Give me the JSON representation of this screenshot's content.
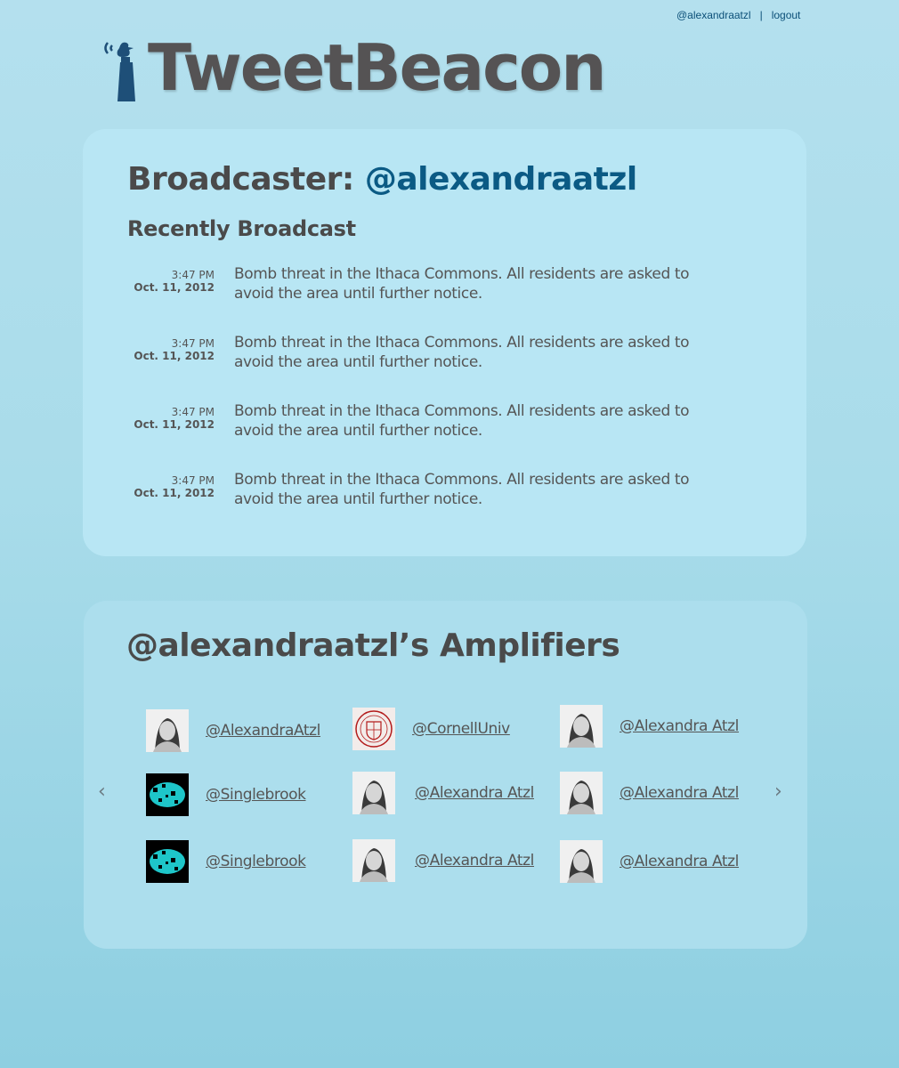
{
  "topnav": {
    "user_link": "@alexandraatzl",
    "separator": "|",
    "logout_link": "logout"
  },
  "logo": {
    "text": "TweetBeacon",
    "icon": "beacon-bird-icon"
  },
  "broadcaster": {
    "label": "Broadcaster: ",
    "handle": "@alexandraatzl"
  },
  "recent": {
    "title": "Recently Broadcast",
    "items": [
      {
        "time": "3:47 PM",
        "date": "Oct. 11, 2012",
        "text": "Bomb threat in the Ithaca Commons.  All residents are asked to avoid the area until further notice."
      },
      {
        "time": "3:47 PM",
        "date": "Oct. 11, 2012",
        "text": "Bomb threat in the Ithaca Commons.  All residents are asked to avoid the area until further notice."
      },
      {
        "time": "3:47 PM",
        "date": "Oct. 11, 2012",
        "text": "Bomb threat in the Ithaca Commons.  All residents are asked to avoid the area until further notice."
      },
      {
        "time": "3:47 PM",
        "date": "Oct. 11, 2012",
        "text": "Bomb threat in the Ithaca Commons.  All residents are asked to avoid the area until further notice."
      }
    ]
  },
  "amplifiers": {
    "title": "@alexandraatzl’s Amplifiers",
    "prev_icon": "chevron-left-icon",
    "next_icon": "chevron-right-icon",
    "items": [
      {
        "name": "@AlexandraAtzl",
        "avatar": "person-photo"
      },
      {
        "name": "@CornellUniv",
        "avatar": "cornell-seal"
      },
      {
        "name": "@Alexandra Atzl",
        "avatar": "person-photo"
      },
      {
        "name": "@Singlebrook",
        "avatar": "singlebrook-logo"
      },
      {
        "name": "@Alexandra Atzl",
        "avatar": "person-photo"
      },
      {
        "name": "@Alexandra Atzl",
        "avatar": "person-photo"
      },
      {
        "name": "@Singlebrook",
        "avatar": "singlebrook-logo"
      },
      {
        "name": "@Alexandra Atzl",
        "avatar": "person-photo"
      },
      {
        "name": "@Alexandra Atzl",
        "avatar": "person-photo"
      }
    ]
  },
  "colors": {
    "accent": "#0b5a84",
    "text": "#4a4a4a",
    "background": "#a9dcea"
  }
}
